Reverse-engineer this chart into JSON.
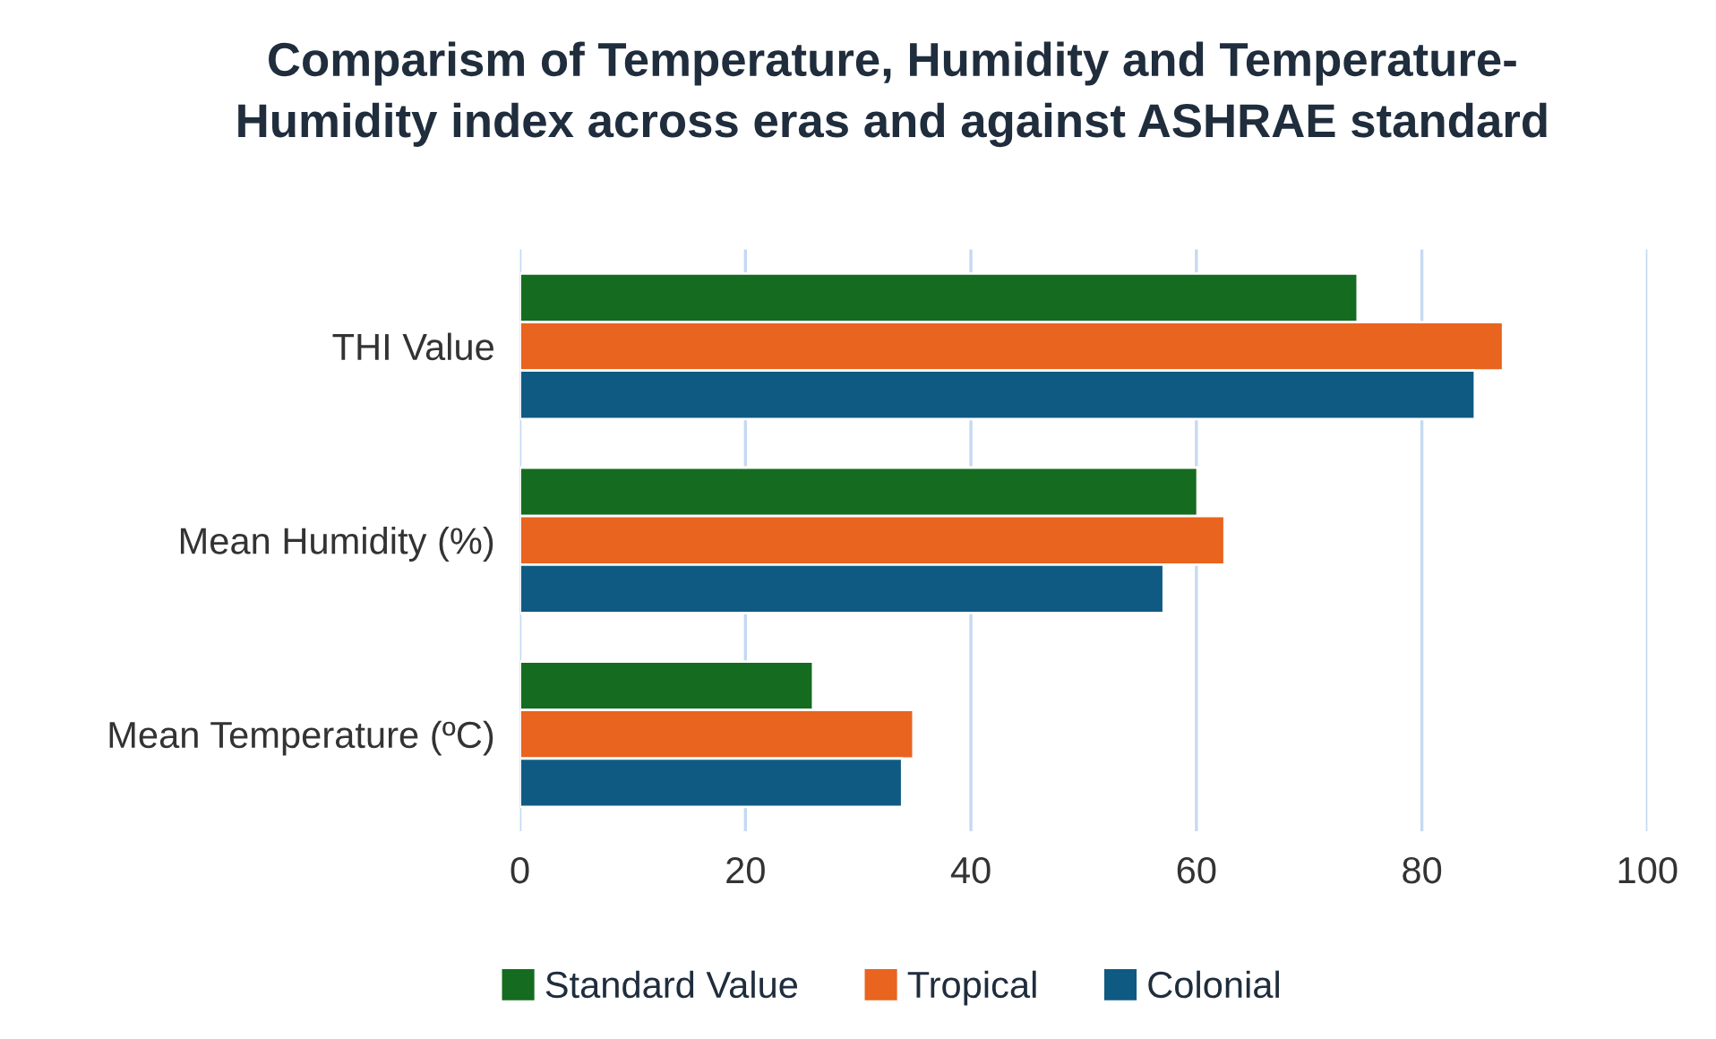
{
  "chart_data": {
    "type": "bar",
    "orientation": "horizontal",
    "title": "Comparism of Temperature, Humidity and Temperature-\nHumidity index across eras and against ASHRAE standard",
    "categories": [
      "THI Value",
      "Mean Humidity (%)",
      "Mean Temperature (ºC)"
    ],
    "series": [
      {
        "name": "Standard Value",
        "color": "#156b1f",
        "values": [
          74.3,
          60.1,
          26
        ]
      },
      {
        "name": "Tropical",
        "color": "#e8641f",
        "values": [
          87.2,
          62.5,
          34.9
        ]
      },
      {
        "name": "Colonial",
        "color": "#0f5a82",
        "values": [
          84.7,
          57.1,
          33.9
        ]
      }
    ],
    "xlim": [
      0,
      100
    ],
    "xticks": [
      0,
      20,
      40,
      60,
      80,
      100
    ],
    "grid": "x",
    "legend": "bottom"
  }
}
